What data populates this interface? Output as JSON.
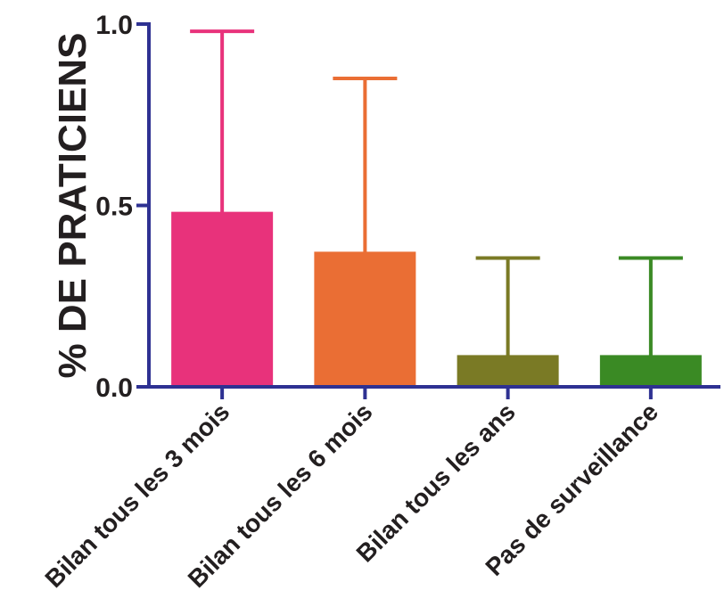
{
  "chart_data": {
    "type": "bar",
    "ylabel": "% DE PRATICIENS",
    "xlabel": "",
    "ylim": [
      0,
      1.0
    ],
    "yticks": [
      {
        "value": 0.0,
        "label": "0.0"
      },
      {
        "value": 0.5,
        "label": "0.5"
      },
      {
        "value": 1.0,
        "label": "1.0"
      }
    ],
    "categories": [
      "Bilan tous les 3 mois",
      "Bilan tous les 6 mois",
      "Bilan tous les ans",
      "Pas de surveillance"
    ],
    "values": [
      0.48,
      0.37,
      0.085,
      0.085
    ],
    "error_upper": [
      0.98,
      0.85,
      0.355,
      0.355
    ],
    "colors": [
      "#e8327b",
      "#ea6e34",
      "#7a7a25",
      "#3a8a24"
    ],
    "axis_color": "#2e3192",
    "grid": false
  }
}
